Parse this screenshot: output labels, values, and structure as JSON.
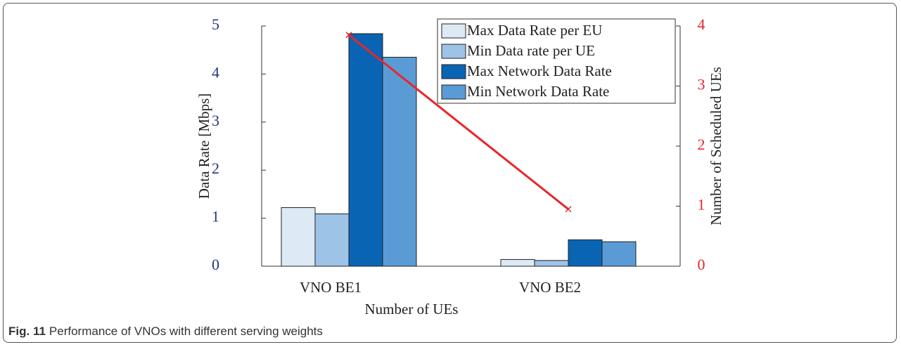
{
  "chart_data": {
    "type": "bar",
    "categories": [
      "VNO BE1",
      "VNO BE2"
    ],
    "series": [
      {
        "name": "Max Data Rate per EU",
        "color": "#dde9f5",
        "values": [
          1.22,
          0.14
        ]
      },
      {
        "name": "Min Data rate per UE",
        "color": "#9dc3e6",
        "values": [
          1.09,
          0.12
        ]
      },
      {
        "name": "Max Network Data Rate",
        "color": "#0a64b4",
        "values": [
          4.84,
          0.55
        ]
      },
      {
        "name": "Min Network Data Rate",
        "color": "#5b9bd5",
        "values": [
          4.35,
          0.51
        ]
      },
      {
        "type": "line",
        "axis": "y2",
        "color": "#e8262a",
        "values": [
          3.85,
          0.95
        ]
      }
    ],
    "xlabel": "Number of UEs",
    "ylabel": "Data Rate [Mbps]",
    "y2label": "Number of Scheduled UEs",
    "ylim": [
      0,
      5
    ],
    "yticks": [
      0,
      1,
      2,
      3,
      4,
      5
    ],
    "y2lim": [
      0,
      4
    ],
    "y2ticks": [
      0,
      1,
      2,
      3,
      4
    ],
    "legend": "upper right"
  },
  "caption": {
    "label": "Fig. 11",
    "text": "Performance of VNOs with different serving weights"
  }
}
